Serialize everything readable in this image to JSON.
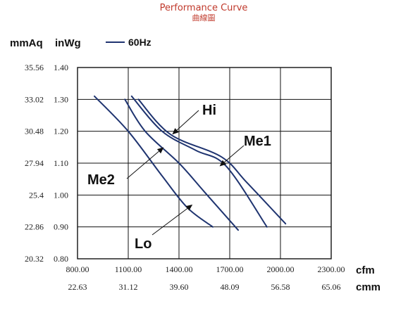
{
  "header": {
    "title": "Performance Curve",
    "subtitle": "曲線圖",
    "left_unit": "mmAq",
    "right_unit": "inWg",
    "legend_label": "60Hz"
  },
  "colors": {
    "curve": "#1f3470",
    "grid": "#111111",
    "title": "#c0392b"
  },
  "chart_data": {
    "type": "line",
    "title": "Performance Curve",
    "subtitle": "曲線圖",
    "xlabel": "cfm",
    "xlabel2": "cmm",
    "ylabel": "inWg",
    "ylabel2": "mmAq",
    "xlim": [
      800,
      2300
    ],
    "ylim": [
      0.8,
      1.4
    ],
    "grid": true,
    "legend": {
      "position": "top-left",
      "entries": [
        "60Hz"
      ]
    },
    "x_ticks": [
      "800.00",
      "1100.00",
      "1400.00",
      "1700.00",
      "2000.00",
      "2300.00"
    ],
    "x_ticks_cmm": [
      "22.63",
      "31.12",
      "39.60",
      "48.09",
      "56.58",
      "65.06"
    ],
    "y_ticks_inwg": [
      "0.80",
      "0.90",
      "1.00",
      "1.10",
      "1.20",
      "1.30",
      "1.40"
    ],
    "y_ticks_mmaq": [
      "20.32",
      "22.86",
      "25.4",
      "27.94",
      "30.48",
      "33.02",
      "35.56"
    ],
    "series": [
      {
        "name": "Lo",
        "x": [
          900,
          1100,
          1300,
          1450,
          1600
        ],
        "y": [
          1.31,
          1.2,
          1.06,
          0.96,
          0.9
        ]
      },
      {
        "name": "Me2",
        "x": [
          1080,
          1200,
          1400,
          1550,
          1750
        ],
        "y": [
          1.3,
          1.2,
          1.1,
          1.01,
          0.89
        ]
      },
      {
        "name": "Hi",
        "x": [
          1120,
          1300,
          1500,
          1680,
          1920
        ],
        "y": [
          1.31,
          1.2,
          1.14,
          1.09,
          0.9
        ]
      },
      {
        "name": "Me1",
        "x": [
          1160,
          1350,
          1650,
          1800,
          2030
        ],
        "y": [
          1.3,
          1.19,
          1.12,
          1.04,
          0.91
        ]
      }
    ],
    "annotations": [
      {
        "text": "Hi",
        "series": "Hi",
        "at_x": 1360,
        "at_y": 1.19
      },
      {
        "text": "Me1",
        "series": "Me1",
        "at_x": 1640,
        "at_y": 1.09
      },
      {
        "text": "Me2",
        "series": "Me2",
        "at_x": 1310,
        "at_y": 1.15
      },
      {
        "text": "Lo",
        "series": "Lo",
        "at_x": 1480,
        "at_y": 0.97
      }
    ]
  }
}
